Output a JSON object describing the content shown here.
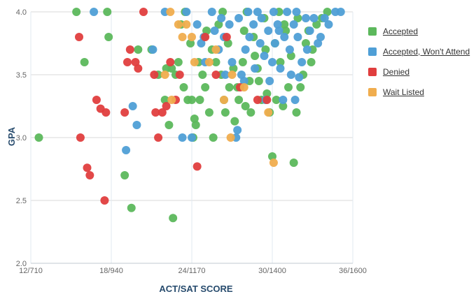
{
  "chart_data": {
    "type": "scatter",
    "xlabel": "ACT/SAT SCORE",
    "ylabel": "GPA",
    "xlim": [
      12,
      36
    ],
    "ylim": [
      2.0,
      4.0
    ],
    "x_ticks": [
      {
        "value": 12,
        "label": "12/710"
      },
      {
        "value": 18,
        "label": "18/940"
      },
      {
        "value": 24,
        "label": "24/1170"
      },
      {
        "value": 30,
        "label": "30/1400"
      },
      {
        "value": 36,
        "label": "36/1600"
      }
    ],
    "y_ticks": [
      {
        "value": 2.0,
        "label": "2.0"
      },
      {
        "value": 2.5,
        "label": "2.5"
      },
      {
        "value": 3.0,
        "label": "3.0"
      },
      {
        "value": 3.5,
        "label": "3.5"
      },
      {
        "value": 4.0,
        "label": "4.0"
      }
    ],
    "grid": true,
    "legend": "right",
    "series": [
      {
        "name": "Accepted",
        "color": "#5cb85c",
        "points": [
          [
            12.6,
            3.0
          ],
          [
            15.4,
            4.0
          ],
          [
            16.0,
            3.6
          ],
          [
            17.7,
            4.0
          ],
          [
            17.8,
            3.8
          ],
          [
            19.0,
            2.7
          ],
          [
            19.5,
            2.44
          ],
          [
            20.0,
            3.7
          ],
          [
            21.0,
            3.7
          ],
          [
            22.0,
            3.3
          ],
          [
            22.3,
            3.1
          ],
          [
            22.6,
            2.36
          ],
          [
            22.8,
            3.5
          ],
          [
            23.0,
            3.6
          ],
          [
            23.2,
            3.9
          ],
          [
            23.4,
            3.4
          ],
          [
            23.7,
            3.3
          ],
          [
            24.0,
            3.3
          ],
          [
            24.2,
            3.15
          ],
          [
            24.3,
            3.1
          ],
          [
            24.6,
            3.3
          ],
          [
            24.8,
            3.5
          ],
          [
            25.0,
            3.4
          ],
          [
            25.3,
            3.2
          ],
          [
            25.6,
            3.0
          ],
          [
            25.8,
            3.6
          ],
          [
            26.0,
            3.9
          ],
          [
            26.2,
            3.5
          ],
          [
            26.5,
            3.2
          ],
          [
            26.8,
            3.4
          ],
          [
            27.2,
            3.13
          ],
          [
            27.5,
            3.3
          ],
          [
            27.8,
            3.6
          ],
          [
            28.0,
            3.25
          ],
          [
            28.3,
            3.45
          ],
          [
            28.6,
            3.8
          ],
          [
            28.9,
            3.55
          ],
          [
            29.2,
            3.3
          ],
          [
            29.5,
            3.7
          ],
          [
            29.8,
            3.2
          ],
          [
            30.0,
            2.85
          ],
          [
            30.3,
            3.3
          ],
          [
            30.6,
            3.6
          ],
          [
            30.9,
            3.9
          ],
          [
            31.2,
            3.4
          ],
          [
            31.6,
            2.8
          ],
          [
            31.8,
            3.2
          ],
          [
            32.1,
            3.4
          ],
          [
            32.5,
            3.75
          ],
          [
            32.9,
            3.6
          ],
          [
            33.3,
            3.9
          ],
          [
            33.7,
            3.95
          ],
          [
            34.1,
            4.0
          ],
          [
            22.1,
            3.55
          ],
          [
            23.9,
            3.75
          ],
          [
            25.1,
            3.85
          ],
          [
            26.7,
            3.75
          ],
          [
            27.9,
            3.85
          ],
          [
            28.7,
            3.65
          ],
          [
            29.4,
            3.95
          ],
          [
            30.2,
            3.75
          ],
          [
            31.0,
            3.85
          ],
          [
            31.9,
            3.95
          ],
          [
            32.7,
            3.85
          ],
          [
            23.5,
            4.0
          ],
          [
            24.5,
            3.6
          ],
          [
            25.5,
            3.7
          ],
          [
            26.3,
            4.0
          ],
          [
            27.1,
            3.55
          ],
          [
            28.1,
            4.0
          ],
          [
            29.0,
            3.45
          ],
          [
            30.5,
            4.0
          ],
          [
            31.4,
            3.65
          ],
          [
            32.3,
            3.5
          ],
          [
            33.0,
            3.7
          ],
          [
            21.5,
            3.5
          ],
          [
            22.5,
            3.55
          ],
          [
            24.1,
            3.0
          ],
          [
            26.4,
            3.3
          ],
          [
            27.4,
            3.4
          ],
          [
            28.4,
            3.2
          ],
          [
            29.6,
            3.35
          ],
          [
            30.8,
            3.25
          ]
        ]
      },
      {
        "name": "Accepted, Won't Attend",
        "color": "#4f9fd6",
        "points": [
          [
            16.7,
            4.0
          ],
          [
            19.1,
            2.9
          ],
          [
            19.6,
            3.25
          ],
          [
            19.9,
            3.1
          ],
          [
            21.1,
            3.7
          ],
          [
            22.0,
            4.0
          ],
          [
            23.3,
            3.0
          ],
          [
            24.0,
            3.0
          ],
          [
            24.4,
            3.9
          ],
          [
            24.9,
            3.8
          ],
          [
            25.5,
            4.0
          ],
          [
            26.0,
            3.7
          ],
          [
            26.4,
            3.8
          ],
          [
            26.8,
            3.9
          ],
          [
            27.3,
            3.0
          ],
          [
            27.4,
            3.06
          ],
          [
            27.7,
            3.5
          ],
          [
            28.0,
            3.7
          ],
          [
            28.3,
            3.8
          ],
          [
            28.6,
            3.9
          ],
          [
            28.9,
            4.0
          ],
          [
            29.1,
            3.75
          ],
          [
            29.4,
            3.65
          ],
          [
            29.7,
            3.85
          ],
          [
            30.0,
            3.6
          ],
          [
            30.2,
            3.75
          ],
          [
            30.4,
            3.9
          ],
          [
            30.6,
            3.55
          ],
          [
            30.9,
            3.8
          ],
          [
            31.1,
            4.0
          ],
          [
            31.3,
            3.7
          ],
          [
            31.6,
            3.9
          ],
          [
            31.9,
            3.8
          ],
          [
            32.2,
            3.6
          ],
          [
            32.5,
            3.95
          ],
          [
            32.8,
            3.85
          ],
          [
            33.1,
            3.95
          ],
          [
            33.6,
            3.8
          ],
          [
            34.2,
            3.9
          ],
          [
            34.7,
            4.0
          ],
          [
            35.1,
            4.0
          ],
          [
            29.5,
            3.3
          ],
          [
            30.8,
            3.3
          ],
          [
            31.7,
            3.3
          ],
          [
            32.0,
            3.48
          ],
          [
            25.0,
            3.6
          ],
          [
            26.5,
            3.5
          ],
          [
            27.0,
            3.6
          ],
          [
            27.9,
            3.45
          ],
          [
            28.7,
            3.55
          ],
          [
            29.8,
            3.45
          ],
          [
            31.4,
            3.5
          ],
          [
            32.6,
            3.7
          ],
          [
            33.4,
            3.75
          ],
          [
            25.7,
            3.85
          ],
          [
            27.5,
            3.95
          ],
          [
            28.2,
            4.0
          ],
          [
            30.1,
            4.0
          ],
          [
            31.8,
            4.0
          ],
          [
            33.9,
            3.95
          ],
          [
            26.2,
            3.95
          ],
          [
            24.7,
            3.75
          ],
          [
            23.6,
            4.0
          ],
          [
            29.2,
            3.95
          ],
          [
            30.5,
            3.85
          ]
        ]
      },
      {
        "name": "Denied",
        "color": "#e03e3e",
        "points": [
          [
            15.6,
            3.8
          ],
          [
            15.7,
            3.0
          ],
          [
            16.2,
            2.76
          ],
          [
            16.4,
            2.7
          ],
          [
            16.9,
            3.3
          ],
          [
            17.2,
            3.23
          ],
          [
            17.6,
            3.2
          ],
          [
            17.5,
            2.5
          ],
          [
            19.0,
            3.2
          ],
          [
            19.2,
            3.6
          ],
          [
            19.4,
            3.7
          ],
          [
            19.8,
            3.6
          ],
          [
            20.0,
            3.55
          ],
          [
            20.4,
            4.0
          ],
          [
            21.2,
            3.5
          ],
          [
            21.3,
            3.2
          ],
          [
            21.5,
            3.0
          ],
          [
            21.8,
            3.2
          ],
          [
            22.1,
            3.25
          ],
          [
            22.4,
            3.6
          ],
          [
            22.8,
            3.3
          ],
          [
            23.1,
            3.5
          ],
          [
            24.4,
            2.77
          ],
          [
            25.0,
            3.8
          ],
          [
            25.8,
            3.5
          ],
          [
            26.6,
            3.8
          ],
          [
            27.6,
            3.4
          ],
          [
            28.9,
            3.3
          ],
          [
            29.6,
            3.3
          ]
        ]
      },
      {
        "name": "Wait Listed",
        "color": "#f0ad4e",
        "points": [
          [
            22.0,
            3.5
          ],
          [
            22.4,
            4.0
          ],
          [
            22.5,
            3.3
          ],
          [
            23.0,
            3.9
          ],
          [
            23.3,
            3.8
          ],
          [
            23.6,
            3.9
          ],
          [
            24.0,
            3.8
          ],
          [
            24.2,
            3.6
          ],
          [
            25.3,
            3.6
          ],
          [
            25.8,
            3.7
          ],
          [
            26.4,
            3.3
          ],
          [
            26.9,
            3.0
          ],
          [
            27.0,
            3.5
          ],
          [
            27.9,
            3.4
          ],
          [
            29.7,
            3.2
          ],
          [
            30.1,
            2.8
          ]
        ]
      }
    ]
  }
}
